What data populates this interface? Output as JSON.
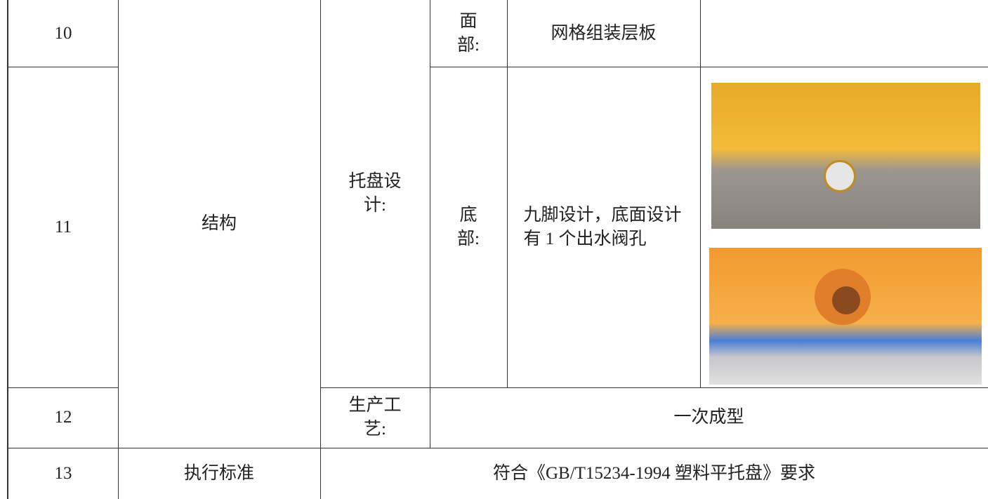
{
  "table": {
    "rows": [
      {
        "no": "10",
        "top_label": "面部:",
        "content": "网格组装层板"
      },
      {
        "no": "11",
        "item": "结构",
        "group": "托盘设计:",
        "sub_label": "底部:",
        "content": "九脚设计，底面设计有 1 个出水阀孔"
      },
      {
        "no": "12",
        "group": "生产工艺:",
        "content": "一次成型"
      },
      {
        "no": "13",
        "item": "执行标准",
        "content": "符合《GB/T15234-1994 塑料平托盘》要求"
      }
    ]
  }
}
